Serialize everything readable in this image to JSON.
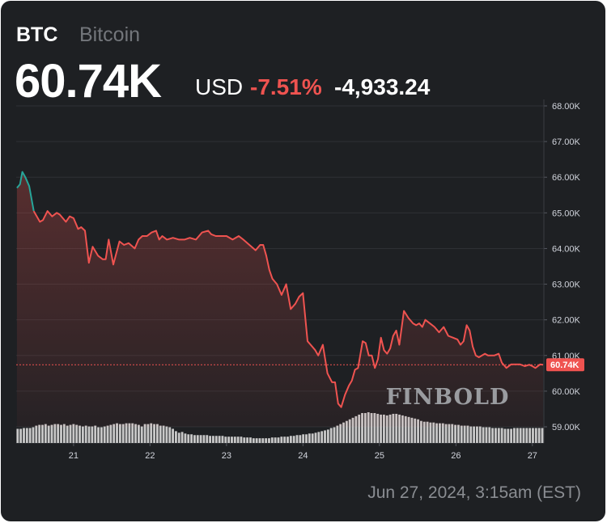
{
  "header": {
    "symbol": "BTC",
    "name": "Bitcoin",
    "price": "60.74K",
    "currency": "USD",
    "change_pct": "-7.51%",
    "change_abs": "-4,933.24"
  },
  "timestamp": "Jun 27, 2024, 3:15am (EST)",
  "watermark": "FINBOLD",
  "colors": {
    "background": "#1e2023",
    "line_down": "#ef5350",
    "line_up": "#26a69a",
    "volume": "#c8c8c8"
  },
  "chart_data": {
    "type": "line",
    "title": "",
    "xlabel": "",
    "ylabel": "",
    "ylim": [
      59000,
      68000
    ],
    "yticks": [
      "68.00K",
      "67.00K",
      "66.00K",
      "65.00K",
      "64.00K",
      "63.00K",
      "62.00K",
      "61.00K",
      "60.00K",
      "59.00K"
    ],
    "ytick_values": [
      68000,
      67000,
      66000,
      65000,
      64000,
      63000,
      62000,
      61000,
      60000,
      59000
    ],
    "xlim": [
      20.25,
      27.15
    ],
    "xticks": [
      "21",
      "22",
      "23",
      "24",
      "25",
      "26",
      "27"
    ],
    "xtick_values": [
      21,
      22,
      23,
      24,
      25,
      26,
      27
    ],
    "last_value_label": "60.74K",
    "last_value": 60740,
    "series": [
      {
        "x": [
          20.26,
          20.3,
          20.33,
          20.37,
          20.42,
          20.48,
          20.52,
          20.56,
          20.6,
          20.66,
          20.72,
          20.78,
          20.82,
          20.86,
          20.9,
          20.95,
          21.0,
          21.06,
          21.1,
          21.15,
          21.2,
          21.25,
          21.32,
          21.38,
          21.42,
          21.46,
          21.52,
          21.6,
          21.66,
          21.72,
          21.8,
          21.85,
          21.9,
          21.96,
          22.02,
          22.08,
          22.12,
          22.16,
          22.22,
          22.3,
          22.38,
          22.45,
          22.52,
          22.6,
          22.68,
          22.76,
          22.8,
          22.86,
          22.92,
          23.0,
          23.08,
          23.16,
          23.22,
          23.3,
          23.38,
          23.44,
          23.48,
          23.52,
          23.56,
          23.6,
          23.66,
          23.72,
          23.78,
          23.84,
          23.9,
          23.95,
          24.0,
          24.06,
          24.1,
          24.16,
          24.2,
          24.26,
          24.32,
          24.38,
          24.42,
          24.46,
          24.5,
          24.55,
          24.6,
          24.64,
          24.68,
          24.72,
          24.78,
          24.82,
          24.86,
          24.9,
          24.94,
          24.98,
          25.02,
          25.06,
          25.1,
          25.14,
          25.18,
          25.22,
          25.26,
          25.32,
          25.38,
          25.44,
          25.48,
          25.52,
          25.56,
          25.6,
          25.66,
          25.72,
          25.78,
          25.84,
          25.9,
          25.96,
          26.02,
          26.06,
          26.1,
          26.14,
          26.18,
          26.22,
          26.26,
          26.3,
          26.34,
          26.38,
          26.42,
          26.46,
          26.5,
          26.56,
          26.6,
          26.66,
          26.72,
          26.78,
          26.84,
          26.9,
          26.96,
          27.0,
          27.04,
          27.1,
          27.14
        ],
        "y": [
          65700,
          65800,
          66150,
          66000,
          65750,
          65050,
          64900,
          64750,
          64800,
          65050,
          64900,
          65000,
          64950,
          64850,
          64750,
          64900,
          64850,
          64550,
          64600,
          64500,
          63600,
          64050,
          63800,
          63700,
          63700,
          64250,
          63550,
          64200,
          64100,
          64150,
          64000,
          64250,
          64350,
          64350,
          64450,
          64500,
          64250,
          64350,
          64250,
          64300,
          64250,
          64250,
          64300,
          64250,
          64450,
          64500,
          64400,
          64350,
          64350,
          64350,
          64250,
          64350,
          64250,
          64100,
          63950,
          64100,
          64100,
          63800,
          63400,
          63150,
          63000,
          62700,
          63000,
          62300,
          62450,
          62650,
          62750,
          61400,
          61300,
          61150,
          61000,
          61300,
          60500,
          60250,
          60250,
          59650,
          59550,
          59900,
          60150,
          60300,
          60600,
          60650,
          61400,
          61350,
          61000,
          61000,
          60650,
          60900,
          61500,
          61150,
          61050,
          61200,
          61550,
          61700,
          61300,
          62250,
          62050,
          61900,
          61850,
          61900,
          61800,
          62000,
          61900,
          61800,
          61650,
          61800,
          61550,
          61500,
          61450,
          61300,
          61400,
          61850,
          61700,
          61250,
          61000,
          60950,
          61000,
          61050,
          61000,
          61000,
          61000,
          61050,
          60800,
          60650,
          60750,
          60750,
          60750,
          60700,
          60740,
          60700,
          60650,
          60750,
          60740
        ]
      }
    ],
    "volume": [
      18,
      18,
      19,
      19,
      19,
      20,
      22,
      23,
      23,
      24,
      22,
      23,
      24,
      24,
      23,
      24,
      22,
      23,
      24,
      23,
      22,
      21,
      22,
      21,
      21,
      22,
      20,
      20,
      21,
      22,
      23,
      24,
      25,
      24,
      24,
      25,
      25,
      25,
      24,
      23,
      21,
      24,
      24,
      25,
      24,
      24,
      22,
      22,
      21,
      20,
      18,
      15,
      13,
      14,
      12,
      11,
      11,
      10,
      10,
      10,
      10,
      10,
      9,
      9,
      9,
      9,
      9,
      8,
      8,
      8,
      8,
      8,
      8,
      7,
      7,
      7,
      6,
      6,
      6,
      6,
      6,
      6,
      7,
      7,
      7,
      8,
      8,
      8,
      9,
      9,
      10,
      10,
      11,
      11,
      12,
      12,
      13,
      14,
      15,
      16,
      17,
      19,
      20,
      22,
      24,
      26,
      28,
      30,
      32,
      34,
      36,
      38,
      38,
      39,
      38,
      38,
      37,
      36,
      36,
      35,
      36,
      37,
      37,
      36,
      35,
      34,
      33,
      32,
      31,
      30,
      28,
      27,
      27,
      26,
      26,
      25,
      25,
      25,
      24,
      24,
      24,
      23,
      23,
      22,
      22,
      22,
      21,
      21,
      21,
      21,
      20,
      20,
      20,
      19,
      19,
      19,
      19,
      18,
      18,
      18,
      19,
      19,
      19,
      19,
      19,
      19,
      19,
      19,
      19,
      19
    ]
  }
}
